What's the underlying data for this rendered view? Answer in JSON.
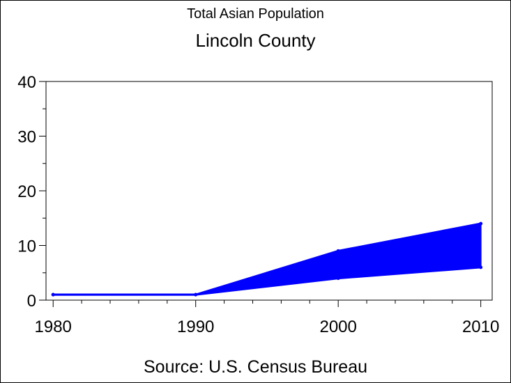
{
  "chart_data": {
    "type": "area",
    "title": "Lincoln County",
    "subtitle": "Total Asian Population",
    "source": "Source: U.S. Census Bureau",
    "x": [
      1980,
      1990,
      2000,
      2010
    ],
    "x_tick_labels": [
      "1980",
      "1990",
      "2000",
      "2010"
    ],
    "xlim": [
      1979.5,
      2010.8
    ],
    "ylim": [
      0,
      40
    ],
    "y_ticks": [
      0,
      10,
      20,
      30,
      40
    ],
    "y_tick_labels": [
      "0",
      "10",
      "20",
      "30",
      "40"
    ],
    "series": [
      {
        "values": [
          1,
          1,
          9,
          14
        ]
      },
      {
        "values": [
          1,
          1,
          4,
          6
        ]
      }
    ],
    "fill_color": "#0000FF",
    "grid": false
  }
}
